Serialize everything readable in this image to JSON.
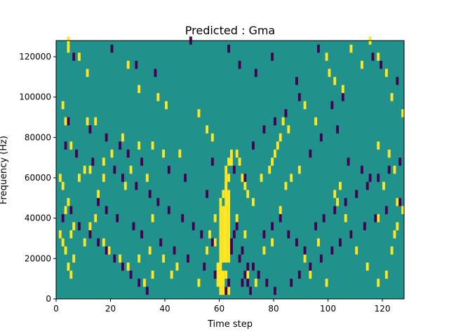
{
  "chart_data": {
    "type": "heatmap",
    "title": "Predicted : Gma",
    "xlabel": "Time step",
    "ylabel": "Frequency (Hz)",
    "xlim": [
      0,
      128
    ],
    "ylim": [
      0,
      128000
    ],
    "x_ticks": [
      0,
      20,
      40,
      60,
      80,
      100,
      120
    ],
    "y_ticks": [
      0,
      20000,
      40000,
      60000,
      80000,
      100000,
      120000
    ],
    "y_tick_labels": [
      "0",
      "20000",
      "40000",
      "60000",
      "80000",
      "100000",
      "120000"
    ],
    "grid": false,
    "colors": {
      "background": "#21918c",
      "high": "#fde725",
      "low": "#440154"
    },
    "cell_height_hz": 4000,
    "high_cells": [
      [
        4,
        122000
      ],
      [
        4,
        126000
      ],
      [
        8,
        118000
      ],
      [
        11,
        110000
      ],
      [
        26,
        114000
      ],
      [
        30,
        102000
      ],
      [
        37,
        98000
      ],
      [
        40,
        94000
      ],
      [
        52,
        90000
      ],
      [
        55,
        82000
      ],
      [
        57,
        78000
      ],
      [
        2,
        94000
      ],
      [
        3,
        86000
      ],
      [
        5,
        74000
      ],
      [
        11,
        86000
      ],
      [
        14,
        86000
      ],
      [
        17,
        66000
      ],
      [
        20,
        70000
      ],
      [
        24,
        78000
      ],
      [
        30,
        74000
      ],
      [
        35,
        74000
      ],
      [
        39,
        70000
      ],
      [
        45,
        70000
      ],
      [
        1,
        58000
      ],
      [
        2,
        54000
      ],
      [
        3,
        42000
      ],
      [
        4,
        46000
      ],
      [
        5,
        30000
      ],
      [
        6,
        34000
      ],
      [
        8,
        58000
      ],
      [
        10,
        62000
      ],
      [
        12,
        62000
      ],
      [
        15,
        50000
      ],
      [
        17,
        58000
      ],
      [
        25,
        54000
      ],
      [
        27,
        62000
      ],
      [
        33,
        58000
      ],
      [
        35,
        38000
      ],
      [
        1,
        30000
      ],
      [
        2,
        26000
      ],
      [
        3,
        22000
      ],
      [
        4,
        14000
      ],
      [
        5,
        10000
      ],
      [
        6,
        18000
      ],
      [
        10,
        26000
      ],
      [
        12,
        34000
      ],
      [
        14,
        38000
      ],
      [
        17,
        26000
      ],
      [
        19,
        22000
      ],
      [
        23,
        18000
      ],
      [
        26,
        14000
      ],
      [
        30,
        18000
      ],
      [
        32,
        6000
      ],
      [
        34,
        22000
      ],
      [
        35,
        10000
      ],
      [
        39,
        18000
      ],
      [
        42,
        10000
      ],
      [
        44,
        14000
      ],
      [
        52,
        6000
      ],
      [
        55,
        22000
      ],
      [
        56,
        30000
      ],
      [
        58,
        38000
      ],
      [
        58,
        26000
      ],
      [
        61,
        42000
      ],
      [
        63,
        46000
      ],
      [
        66,
        38000
      ],
      [
        69,
        30000
      ],
      [
        70,
        10000
      ],
      [
        73,
        6000
      ],
      [
        76,
        22000
      ],
      [
        79,
        26000
      ],
      [
        82,
        42000
      ],
      [
        84,
        54000
      ],
      [
        86,
        58000
      ],
      [
        89,
        62000
      ],
      [
        91,
        18000
      ],
      [
        93,
        10000
      ],
      [
        96,
        26000
      ],
      [
        99,
        6000
      ],
      [
        102,
        50000
      ],
      [
        103,
        46000
      ],
      [
        104,
        54000
      ],
      [
        106,
        38000
      ],
      [
        108,
        30000
      ],
      [
        110,
        22000
      ],
      [
        114,
        14000
      ],
      [
        118,
        6000
      ],
      [
        121,
        10000
      ],
      [
        123,
        22000
      ],
      [
        124,
        30000
      ],
      [
        125,
        34000
      ],
      [
        127,
        42000
      ],
      [
        85,
        82000
      ],
      [
        91,
        94000
      ],
      [
        95,
        86000
      ],
      [
        99,
        118000
      ],
      [
        100,
        110000
      ],
      [
        102,
        106000
      ],
      [
        105,
        102000
      ],
      [
        108,
        122000
      ],
      [
        112,
        114000
      ],
      [
        115,
        126000
      ],
      [
        118,
        118000
      ],
      [
        121,
        110000
      ],
      [
        123,
        98000
      ],
      [
        127,
        90000
      ],
      [
        118,
        74000
      ],
      [
        122,
        70000
      ],
      [
        124,
        62000
      ],
      [
        120,
        54000
      ],
      [
        125,
        46000
      ],
      [
        118,
        38000
      ],
      [
        59,
        14000
      ],
      [
        59,
        10000
      ],
      [
        59,
        6000
      ],
      [
        60,
        2000
      ],
      [
        61,
        2000
      ],
      [
        62,
        2000
      ],
      [
        63,
        2000
      ],
      [
        60,
        42000
      ],
      [
        60,
        46000
      ],
      [
        61,
        50000
      ],
      [
        62,
        54000
      ],
      [
        63,
        58000
      ],
      [
        62,
        62000
      ],
      [
        63,
        66000
      ],
      [
        64,
        70000
      ],
      [
        66,
        70000
      ],
      [
        67,
        66000
      ],
      [
        68,
        58000
      ],
      [
        69,
        54000
      ],
      [
        70,
        50000
      ],
      [
        72,
        46000
      ],
      [
        75,
        58000
      ],
      [
        78,
        62000
      ],
      [
        79,
        66000
      ],
      [
        80,
        70000
      ],
      [
        81,
        74000
      ],
      [
        82,
        78000
      ],
      [
        83,
        86000
      ]
    ],
    "high_blocks": [
      [
        60,
        61,
        14000,
        42000
      ],
      [
        61,
        63,
        18000,
        46000
      ],
      [
        63,
        64,
        18000,
        54000
      ],
      [
        62,
        63,
        46000,
        62000
      ],
      [
        60,
        62,
        6000,
        14000
      ],
      [
        62,
        63,
        10000,
        14000
      ],
      [
        64,
        65,
        66000,
        70000
      ]
    ],
    "low_cells": [
      [
        6,
        118000
      ],
      [
        20,
        122000
      ],
      [
        29,
        114000
      ],
      [
        36,
        110000
      ],
      [
        49,
        126000
      ],
      [
        63,
        122000
      ],
      [
        67,
        114000
      ],
      [
        73,
        110000
      ],
      [
        79,
        118000
      ],
      [
        88,
        106000
      ],
      [
        96,
        122000
      ],
      [
        101,
        94000
      ],
      [
        105,
        98000
      ],
      [
        116,
        118000
      ],
      [
        119,
        114000
      ],
      [
        125,
        106000
      ],
      [
        4,
        86000
      ],
      [
        12,
        82000
      ],
      [
        18,
        78000
      ],
      [
        23,
        74000
      ],
      [
        26,
        70000
      ],
      [
        31,
        66000
      ],
      [
        41,
        62000
      ],
      [
        47,
        58000
      ],
      [
        57,
        66000
      ],
      [
        65,
        62000
      ],
      [
        69,
        58000
      ],
      [
        72,
        74000
      ],
      [
        76,
        82000
      ],
      [
        80,
        86000
      ],
      [
        84,
        90000
      ],
      [
        89,
        98000
      ],
      [
        93,
        70000
      ],
      [
        97,
        78000
      ],
      [
        103,
        82000
      ],
      [
        107,
        66000
      ],
      [
        112,
        62000
      ],
      [
        115,
        58000
      ],
      [
        3,
        74000
      ],
      [
        7,
        70000
      ],
      [
        13,
        66000
      ],
      [
        21,
        62000
      ],
      [
        24,
        58000
      ],
      [
        29,
        54000
      ],
      [
        34,
        50000
      ],
      [
        37,
        46000
      ],
      [
        41,
        42000
      ],
      [
        46,
        38000
      ],
      [
        50,
        34000
      ],
      [
        53,
        30000
      ],
      [
        57,
        26000
      ],
      [
        64,
        22000
      ],
      [
        67,
        18000
      ],
      [
        70,
        14000
      ],
      [
        74,
        10000
      ],
      [
        77,
        6000
      ],
      [
        80,
        2000
      ],
      [
        86,
        6000
      ],
      [
        89,
        10000
      ],
      [
        93,
        14000
      ],
      [
        97,
        18000
      ],
      [
        101,
        22000
      ],
      [
        104,
        26000
      ],
      [
        108,
        30000
      ],
      [
        113,
        34000
      ],
      [
        117,
        38000
      ],
      [
        121,
        42000
      ],
      [
        126,
        46000
      ],
      [
        2,
        38000
      ],
      [
        5,
        42000
      ],
      [
        8,
        34000
      ],
      [
        12,
        30000
      ],
      [
        15,
        26000
      ],
      [
        18,
        22000
      ],
      [
        21,
        18000
      ],
      [
        24,
        14000
      ],
      [
        27,
        10000
      ],
      [
        30,
        6000
      ],
      [
        33,
        2000
      ],
      [
        15,
        46000
      ],
      [
        18,
        42000
      ],
      [
        22,
        38000
      ],
      [
        28,
        34000
      ],
      [
        31,
        30000
      ],
      [
        38,
        26000
      ],
      [
        43,
        22000
      ],
      [
        48,
        18000
      ],
      [
        54,
        14000
      ],
      [
        58,
        10000
      ],
      [
        55,
        50000
      ],
      [
        64,
        26000
      ],
      [
        65,
        30000
      ],
      [
        66,
        34000
      ],
      [
        68,
        22000
      ],
      [
        62,
        2000
      ],
      [
        63,
        6000
      ],
      [
        68,
        6000
      ],
      [
        69,
        10000
      ],
      [
        70,
        6000
      ],
      [
        71,
        2000
      ],
      [
        72,
        14000
      ],
      [
        76,
        30000
      ],
      [
        79,
        34000
      ],
      [
        82,
        38000
      ],
      [
        85,
        30000
      ],
      [
        88,
        26000
      ],
      [
        91,
        22000
      ],
      [
        95,
        34000
      ],
      [
        98,
        38000
      ],
      [
        102,
        42000
      ],
      [
        106,
        46000
      ],
      [
        110,
        50000
      ],
      [
        114,
        54000
      ],
      [
        118,
        58000
      ],
      [
        122,
        62000
      ],
      [
        126,
        66000
      ]
    ]
  }
}
